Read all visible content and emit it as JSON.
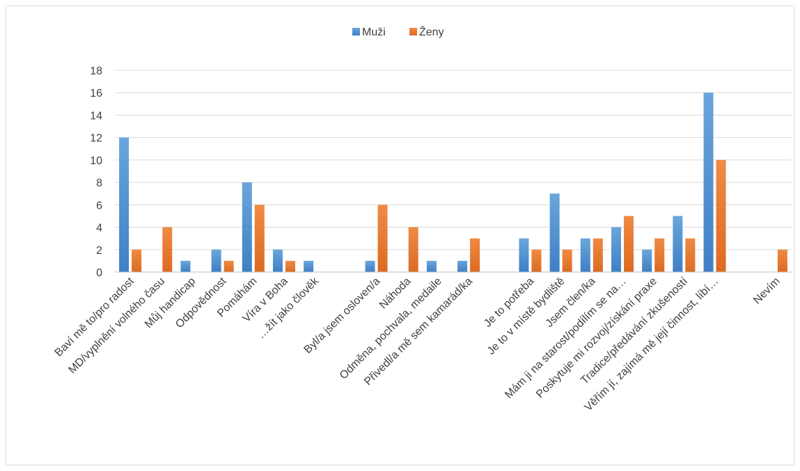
{
  "chart_data": {
    "type": "bar",
    "categories": [
      "Baví mě to/pro radost",
      "MD/vyplnění volného času",
      "Můj handicap",
      "Odpovědnost",
      "Pomáhám",
      "Víra v Boha",
      "…žít jako člověk",
      "",
      "Byl/a jsem osloven/a",
      "Náhoda",
      "Odměna, pochvala, medaile",
      "Přivedl/a mě sem kamarád/ka",
      "",
      "Je to potřeba",
      "Je to v místě bydliště",
      "Jsem člen/ka",
      "Mám ji na starost/podílím se na…",
      "Poskytuje mi rozvoj/získání praxe",
      "Tradice/předávání zkušeností",
      "Věřím jí, zajímá mě její činnost, líbí…",
      "",
      "Nevím"
    ],
    "series": [
      {
        "name": "Muži",
        "color": "#5b9bd5",
        "values": [
          12,
          0,
          1,
          2,
          8,
          2,
          1,
          0,
          1,
          0,
          1,
          1,
          0,
          3,
          7,
          3,
          4,
          2,
          5,
          16,
          0,
          0
        ]
      },
      {
        "name": "Ženy",
        "color": "#ed7d31",
        "values": [
          2,
          4,
          0,
          1,
          6,
          1,
          0,
          0,
          6,
          4,
          0,
          3,
          0,
          2,
          2,
          3,
          5,
          3,
          3,
          10,
          0,
          2
        ]
      }
    ],
    "ylim": [
      0,
      18
    ],
    "yticks": [
      0,
      2,
      4,
      6,
      8,
      10,
      12,
      14,
      16,
      18
    ],
    "grid": true,
    "legend_position": "top-center"
  }
}
